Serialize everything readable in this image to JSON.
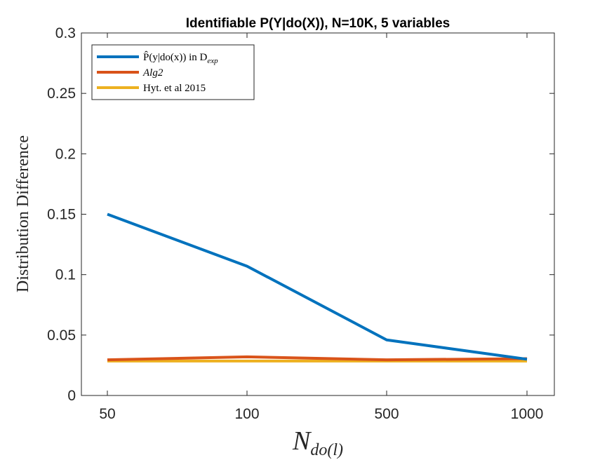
{
  "chart_data": {
    "type": "line",
    "title": "Identifiable P(Y|do(X)), N=10K, 5 variables",
    "xlabel_main": "N",
    "xlabel_sub": "do(l)",
    "ylabel": "Distribution Difference",
    "categories": [
      "50",
      "100",
      "500",
      "1000"
    ],
    "ylim": [
      0,
      0.3
    ],
    "yticks": [
      0,
      0.05,
      0.1,
      0.15,
      0.2,
      0.25,
      0.3
    ],
    "ytick_labels": [
      "0",
      "0.05",
      "0.1",
      "0.15",
      "0.2",
      "0.25",
      "0.3"
    ],
    "grid": false,
    "legend_position": "top-left",
    "series": [
      {
        "name": "P̂(y|do(x)) in D",
        "name_sub": "exp",
        "color": "#0072BD",
        "values": [
          0.15,
          0.107,
          0.046,
          0.03
        ]
      },
      {
        "name": "Alg2",
        "name_sub": "",
        "color": "#D95319",
        "values": [
          0.0295,
          0.032,
          0.0295,
          0.0305
        ]
      },
      {
        "name": "Hyt. et al 2015",
        "name_sub": "",
        "color": "#EDB120",
        "values": [
          0.0285,
          0.0285,
          0.0285,
          0.0285
        ]
      }
    ]
  }
}
